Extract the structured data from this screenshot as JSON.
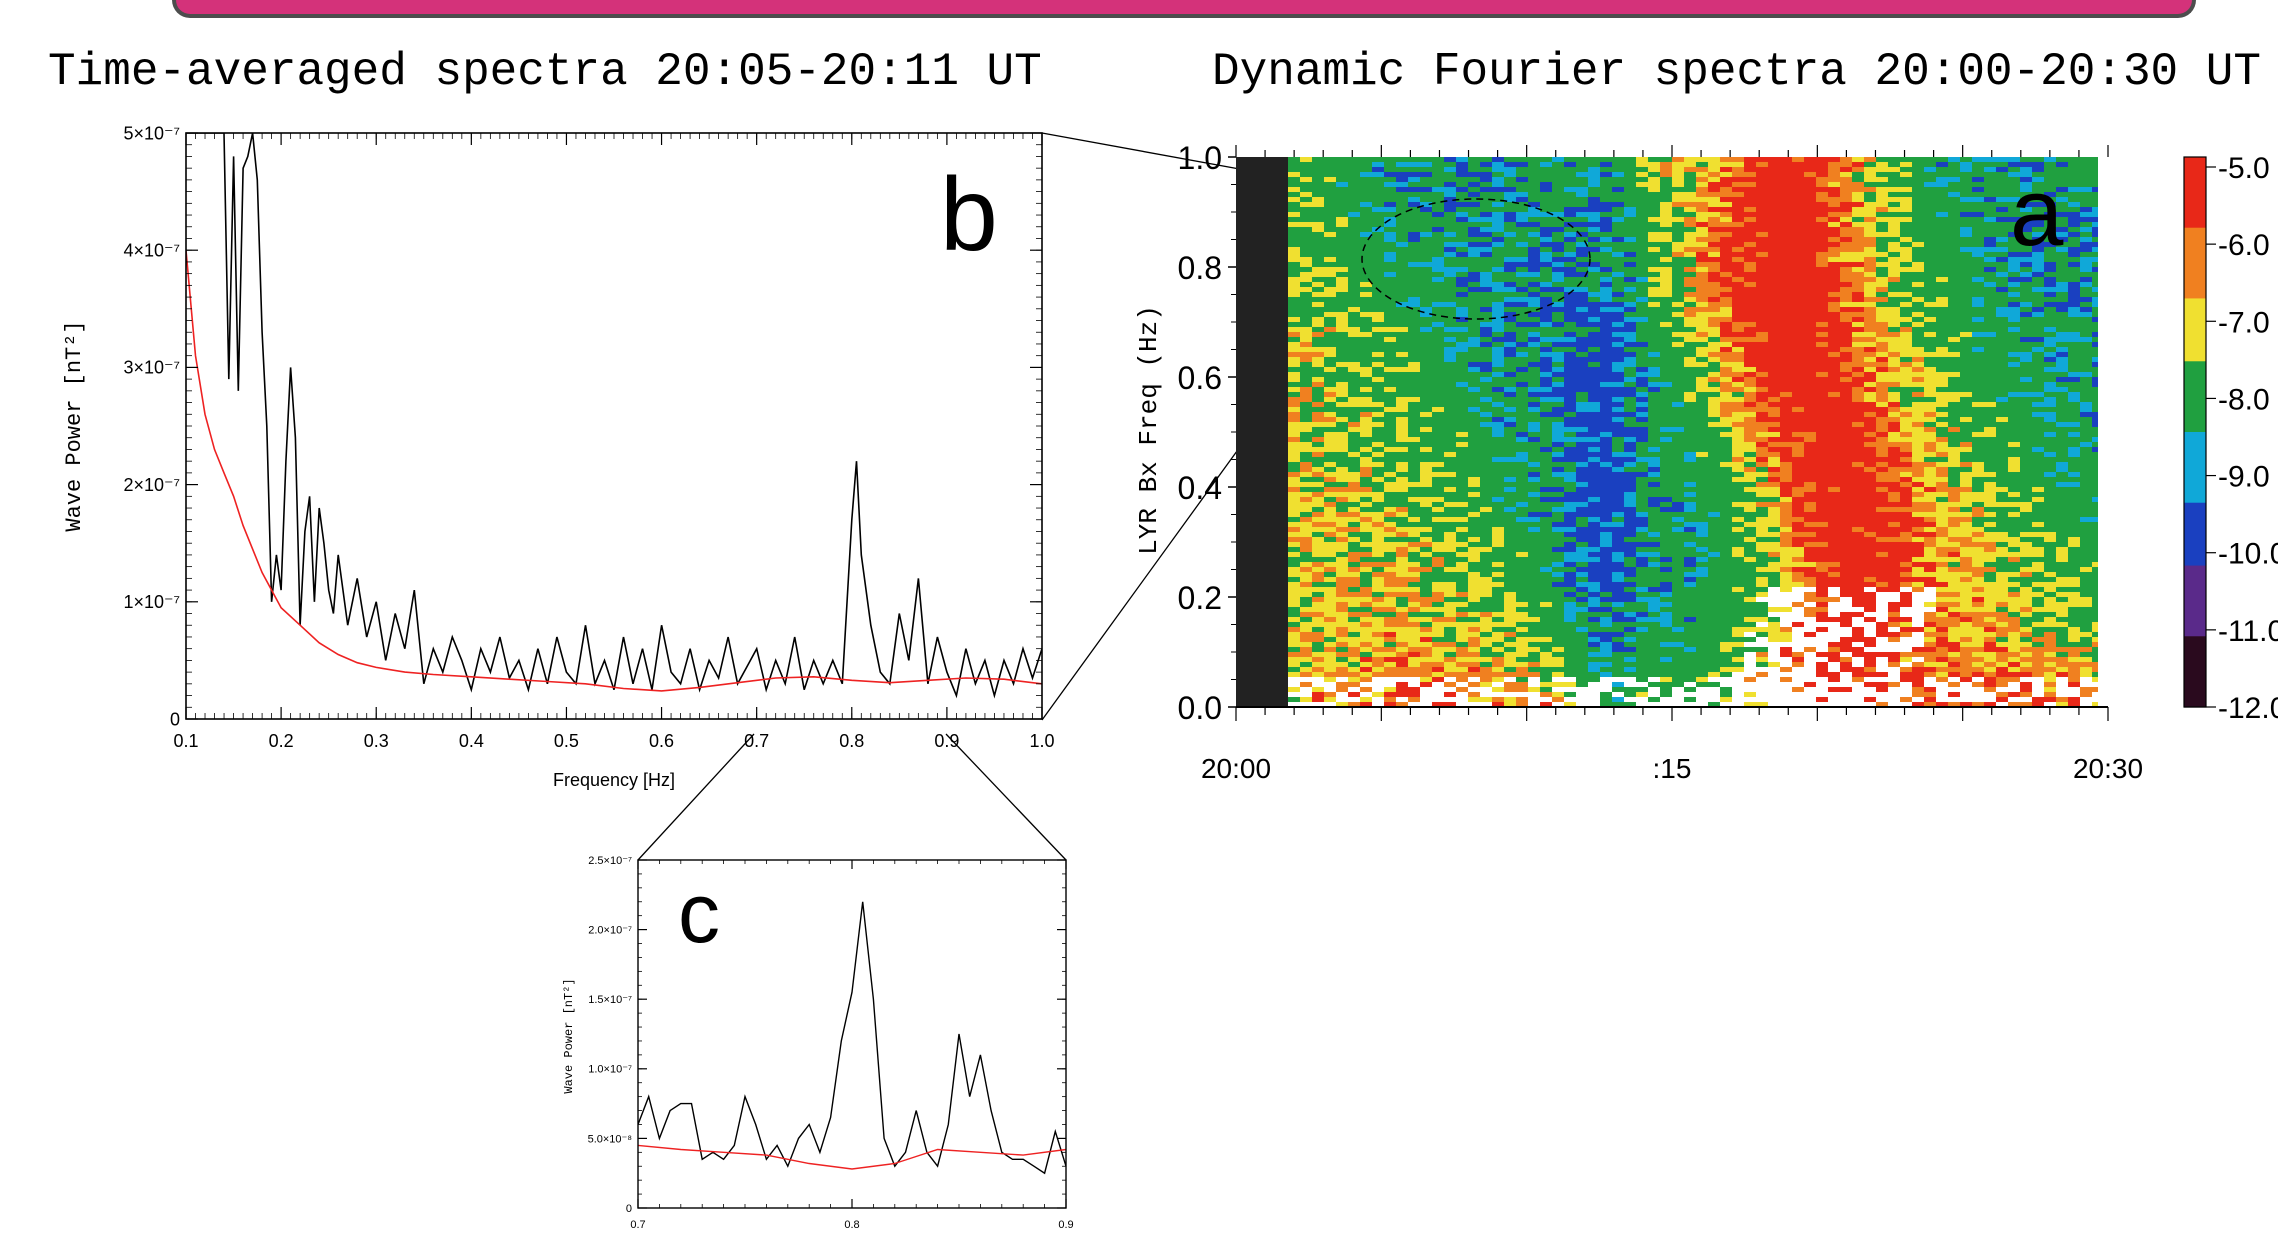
{
  "banner": {
    "color": "#d4327a"
  },
  "chart_data": [
    {
      "panel": "b",
      "type": "line",
      "title": "Time-averaged spectra 20:05-20:11 UT",
      "xlabel": "Frequency [Hz]",
      "ylabel": "Wave Power [nT²]",
      "xlim": [
        0.1,
        1.0
      ],
      "ylim": [
        0,
        5e-07
      ],
      "xticks": [
        "0.1",
        "0.2",
        "0.3",
        "0.4",
        "0.5",
        "0.6",
        "0.7",
        "0.8",
        "0.9",
        "1.0"
      ],
      "yticks": [
        "0",
        "1×10⁻⁷",
        "2×10⁻⁷",
        "3×10⁻⁷",
        "4×10⁻⁷",
        "5×10⁻⁷"
      ],
      "series": [
        {
          "color": "#000000",
          "x": [
            0.1,
            0.12,
            0.14,
            0.145,
            0.15,
            0.155,
            0.16,
            0.165,
            0.17,
            0.175,
            0.18,
            0.185,
            0.19,
            0.195,
            0.2,
            0.205,
            0.21,
            0.215,
            0.22,
            0.225,
            0.23,
            0.235,
            0.24,
            0.245,
            0.25,
            0.255,
            0.26,
            0.27,
            0.28,
            0.29,
            0.3,
            0.31,
            0.32,
            0.33,
            0.34,
            0.35,
            0.36,
            0.37,
            0.38,
            0.39,
            0.4,
            0.41,
            0.42,
            0.43,
            0.44,
            0.45,
            0.46,
            0.47,
            0.48,
            0.49,
            0.5,
            0.51,
            0.52,
            0.53,
            0.54,
            0.55,
            0.56,
            0.57,
            0.58,
            0.59,
            0.6,
            0.61,
            0.62,
            0.63,
            0.64,
            0.65,
            0.66,
            0.67,
            0.68,
            0.69,
            0.7,
            0.71,
            0.72,
            0.73,
            0.74,
            0.75,
            0.76,
            0.77,
            0.78,
            0.79,
            0.8,
            0.805,
            0.81,
            0.82,
            0.83,
            0.84,
            0.85,
            0.86,
            0.87,
            0.88,
            0.89,
            0.9,
            0.91,
            0.92,
            0.93,
            0.94,
            0.95,
            0.96,
            0.97,
            0.98,
            0.99,
            1.0
          ],
          "y": [
            5e-07,
            5e-07,
            5e-07,
            2.9e-07,
            4.8e-07,
            2.8e-07,
            4.7e-07,
            4.8e-07,
            5e-07,
            4.6e-07,
            3.3e-07,
            2.5e-07,
            1e-07,
            1.4e-07,
            1.1e-07,
            2.2e-07,
            3e-07,
            2.4e-07,
            8e-08,
            1.6e-07,
            1.9e-07,
            1e-07,
            1.8e-07,
            1.5e-07,
            1.1e-07,
            9e-08,
            1.4e-07,
            8e-08,
            1.2e-07,
            7e-08,
            1e-07,
            5e-08,
            9e-08,
            6e-08,
            1.1e-07,
            3e-08,
            6e-08,
            4e-08,
            7e-08,
            5e-08,
            2.5e-08,
            6e-08,
            4e-08,
            7e-08,
            3.5e-08,
            5e-08,
            2.5e-08,
            6e-08,
            3e-08,
            7e-08,
            4e-08,
            3e-08,
            8e-08,
            3e-08,
            5e-08,
            2.5e-08,
            7e-08,
            3e-08,
            6e-08,
            2.5e-08,
            8e-08,
            4e-08,
            3e-08,
            6e-08,
            2.5e-08,
            5e-08,
            3.5e-08,
            7e-08,
            3e-08,
            4.5e-08,
            6e-08,
            2.5e-08,
            5e-08,
            3e-08,
            7e-08,
            2.5e-08,
            5e-08,
            3e-08,
            5e-08,
            3e-08,
            1.7e-07,
            2.2e-07,
            1.4e-07,
            8e-08,
            4e-08,
            3e-08,
            9e-08,
            5e-08,
            1.2e-07,
            3e-08,
            7e-08,
            4e-08,
            2e-08,
            6e-08,
            3e-08,
            5e-08,
            2e-08,
            5e-08,
            3e-08,
            6e-08,
            3.5e-08,
            6e-08
          ]
        },
        {
          "color": "#ee2222",
          "x": [
            0.1,
            0.11,
            0.12,
            0.13,
            0.14,
            0.15,
            0.16,
            0.17,
            0.18,
            0.19,
            0.2,
            0.22,
            0.24,
            0.26,
            0.28,
            0.3,
            0.33,
            0.36,
            0.4,
            0.44,
            0.48,
            0.52,
            0.56,
            0.6,
            0.64,
            0.68,
            0.72,
            0.76,
            0.8,
            0.84,
            0.88,
            0.92,
            0.96,
            1.0
          ],
          "y": [
            4e-07,
            3.1e-07,
            2.6e-07,
            2.3e-07,
            2.1e-07,
            1.9e-07,
            1.65e-07,
            1.45e-07,
            1.25e-07,
            1.1e-07,
            9.5e-08,
            8e-08,
            6.5e-08,
            5.5e-08,
            4.8e-08,
            4.4e-08,
            4e-08,
            3.8e-08,
            3.6e-08,
            3.4e-08,
            3.2e-08,
            3e-08,
            2.6e-08,
            2.4e-08,
            2.7e-08,
            3.1e-08,
            3.5e-08,
            3.6e-08,
            3.3e-08,
            3.1e-08,
            3.3e-08,
            3.5e-08,
            3.4e-08,
            3e-08
          ]
        }
      ]
    },
    {
      "panel": "c",
      "type": "line",
      "xlim": [
        0.7,
        0.9
      ],
      "ylim": [
        0,
        2.5e-07
      ],
      "ylabel": "Wave Power [nT²]",
      "xticks": [
        "0.7",
        "0.8",
        "0.9"
      ],
      "yticks": [
        "0",
        "5.0×10⁻⁸",
        "1.0×10⁻⁷",
        "1.5×10⁻⁷",
        "2.0×10⁻⁷",
        "2.5×10⁻⁷"
      ],
      "series": [
        {
          "color": "#000000",
          "x": [
            0.7,
            0.705,
            0.71,
            0.715,
            0.72,
            0.725,
            0.73,
            0.735,
            0.74,
            0.745,
            0.75,
            0.755,
            0.76,
            0.765,
            0.77,
            0.775,
            0.78,
            0.785,
            0.79,
            0.795,
            0.8,
            0.805,
            0.81,
            0.815,
            0.82,
            0.825,
            0.83,
            0.835,
            0.84,
            0.845,
            0.85,
            0.855,
            0.86,
            0.865,
            0.87,
            0.875,
            0.88,
            0.885,
            0.89,
            0.895,
            0.9
          ],
          "y": [
            6e-08,
            8e-08,
            5e-08,
            7e-08,
            7.5e-08,
            7.5e-08,
            3.5e-08,
            4e-08,
            3.5e-08,
            4.5e-08,
            8e-08,
            6e-08,
            3.5e-08,
            4.5e-08,
            3e-08,
            5e-08,
            6e-08,
            4e-08,
            6.5e-08,
            1.2e-07,
            1.55e-07,
            2.2e-07,
            1.5e-07,
            5e-08,
            3e-08,
            4e-08,
            7e-08,
            4e-08,
            3e-08,
            6e-08,
            1.25e-07,
            8e-08,
            1.1e-07,
            7e-08,
            4e-08,
            3.5e-08,
            3.5e-08,
            3e-08,
            2.5e-08,
            5.5e-08,
            3e-08
          ]
        },
        {
          "color": "#ee2222",
          "x": [
            0.7,
            0.72,
            0.74,
            0.76,
            0.78,
            0.8,
            0.82,
            0.84,
            0.86,
            0.88,
            0.9
          ],
          "y": [
            4.5e-08,
            4.2e-08,
            4e-08,
            3.8e-08,
            3.2e-08,
            2.8e-08,
            3.2e-08,
            4.2e-08,
            4e-08,
            3.8e-08,
            4.2e-08
          ]
        }
      ]
    },
    {
      "panel": "a",
      "type": "heatmap",
      "title": "Dynamic Fourier spectra 20:00-20:30 UT",
      "ylabel": "LYR Bx Freq (Hz)",
      "xlim": [
        "20:00",
        "20:30"
      ],
      "ylim": [
        0,
        1.0
      ],
      "xticks": [
        "20:00",
        ":15",
        "20:30"
      ],
      "yticks": [
        "0.0",
        "0.2",
        "0.4",
        "0.6",
        "0.8",
        "1.0"
      ],
      "colorbar": {
        "range": [
          -12.0,
          -5.0
        ],
        "ticks": [
          "-5.0",
          "-6.0",
          "-7.0",
          "-8.0",
          "-9.0",
          "-10.0",
          "-11.0",
          "-12.0"
        ],
        "colors": [
          "#2a0a1e",
          "#5a2a8a",
          "#1a40c0",
          "#10a8d8",
          "#20a040",
          "#f0e030",
          "#f08020",
          "#e82818"
        ]
      },
      "highlight": "dashed ellipse near 0.8 Hz, 20:05-20:11 UT"
    }
  ],
  "labels": {
    "b": "b",
    "a": "a",
    "c": "c"
  }
}
